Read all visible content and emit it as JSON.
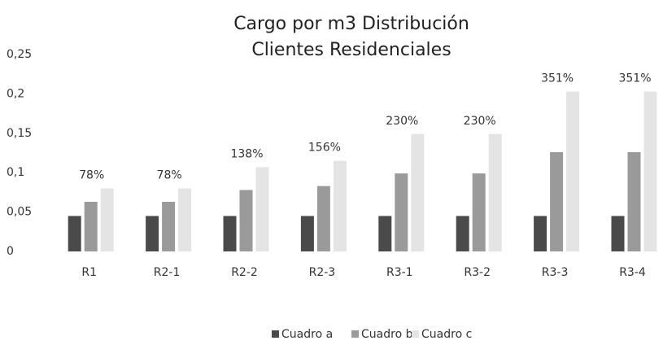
{
  "chart_data": {
    "type": "bar",
    "title": [
      "Cargo por m3 Distribución",
      "Clientes Residenciales"
    ],
    "categories": [
      "R1",
      "R2-1",
      "R2-2",
      "R2-3",
      "R3-1",
      "R3-2",
      "R3-3",
      "R3-4"
    ],
    "series": [
      {
        "name": "Cuadro a",
        "color": "#4a4a4a",
        "values": [
          0.045,
          0.045,
          0.045,
          0.045,
          0.045,
          0.045,
          0.045,
          0.045
        ]
      },
      {
        "name": "Cuadro b",
        "color": "#9a9a9a",
        "values": [
          0.063,
          0.063,
          0.078,
          0.083,
          0.099,
          0.099,
          0.126,
          0.126
        ]
      },
      {
        "name": "Cuadro c",
        "color": "#e4e4e4",
        "values": [
          0.08,
          0.08,
          0.107,
          0.115,
          0.149,
          0.149,
          0.203,
          0.203
        ]
      }
    ],
    "annotations": [
      "78%",
      "78%",
      "138%",
      "156%",
      "230%",
      "230%",
      "351%",
      "351%"
    ],
    "ylim": [
      0,
      0.25
    ],
    "yticks": [
      0,
      {
        "value": 0.05,
        "label": "0,05"
      },
      {
        "value": 0.1,
        "label": "0,1"
      },
      {
        "value": 0.15,
        "label": "0,15"
      },
      {
        "value": 0.2,
        "label": "0,2"
      },
      {
        "value": 0.25,
        "label": "0,25"
      }
    ],
    "grid": false
  }
}
